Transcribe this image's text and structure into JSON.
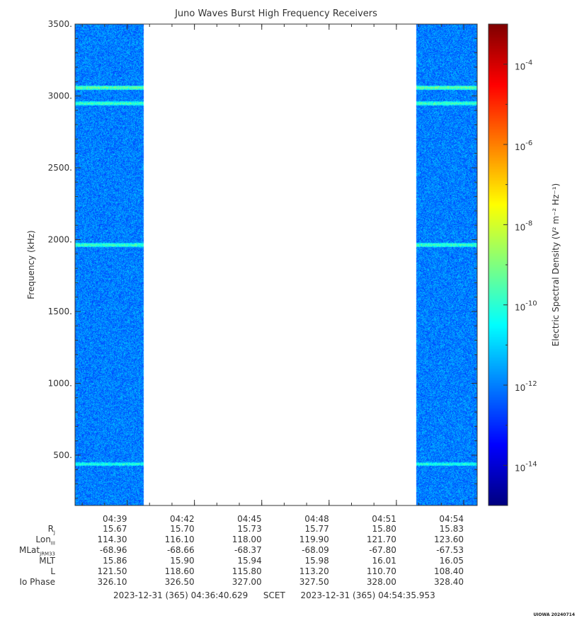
{
  "title": "Juno Waves Burst High Frequency Receivers",
  "colorbar_label": "Electric Spectral Density (V² m⁻² Hz⁻¹)",
  "colorbar_ticks": [
    {
      "base": "10",
      "exp": "-4",
      "value_log10": -4
    },
    {
      "base": "10",
      "exp": "-6",
      "value_log10": -6
    },
    {
      "base": "10",
      "exp": "-8",
      "value_log10": -8
    },
    {
      "base": "10",
      "exp": "-10",
      "value_log10": -10
    },
    {
      "base": "10",
      "exp": "-12",
      "value_log10": -12
    },
    {
      "base": "10",
      "exp": "-14",
      "value_log10": -14
    }
  ],
  "ephemeris": {
    "rows": [
      {
        "name": "R",
        "sub": "J",
        "values": [
          "15.67",
          "15.70",
          "15.73",
          "15.77",
          "15.80",
          "15.83"
        ]
      },
      {
        "name": "Lon",
        "sub": "III",
        "values": [
          "114.30",
          "116.10",
          "118.00",
          "119.90",
          "121.70",
          "123.60"
        ]
      },
      {
        "name": "MLat",
        "sub": "JRM33",
        "values": [
          "-68.96",
          "-68.66",
          "-68.37",
          "-68.09",
          "-67.80",
          "-67.53"
        ]
      },
      {
        "name": "MLT",
        "sub": "",
        "values": [
          "15.86",
          "15.90",
          "15.94",
          "15.98",
          "16.01",
          "16.05"
        ]
      },
      {
        "name": "L",
        "sub": "",
        "values": [
          "121.50",
          "118.60",
          "115.80",
          "113.20",
          "110.70",
          "108.40"
        ]
      },
      {
        "name": "Io Phase",
        "sub": "",
        "values": [
          "326.10",
          "326.50",
          "327.00",
          "327.50",
          "328.00",
          "328.40"
        ]
      }
    ]
  },
  "footer": {
    "start": "2023-12-31 (365) 04:36:40.629",
    "mid": "SCET",
    "end": "2023-12-31 (365) 04:54:35.953"
  },
  "credit": "UIOWA 20240714",
  "chart_data": {
    "type": "heatmap",
    "title": "Juno Waves Burst High Frequency Receivers",
    "ylabel": "Frequency (kHz)",
    "xlabel": "",
    "y_range_khz": [
      150,
      3500
    ],
    "x_range_minutes": [
      0,
      17.92
    ],
    "x_start_time": "04:36:40.629",
    "yticks": [
      {
        "label": "500.",
        "value": 500
      },
      {
        "label": "1000.",
        "value": 1000
      },
      {
        "label": "1500.",
        "value": 1500
      },
      {
        "label": "2000.",
        "value": 2000
      },
      {
        "label": "2500.",
        "value": 2500
      },
      {
        "label": "3000.",
        "value": 3000
      },
      {
        "label": "3500.",
        "value": 3500
      }
    ],
    "xticks": [
      {
        "label": "04:39",
        "minute": 2.32
      },
      {
        "label": "04:42",
        "minute": 5.32
      },
      {
        "label": "04:45",
        "minute": 8.32
      },
      {
        "label": "04:48",
        "minute": 11.32
      },
      {
        "label": "04:51",
        "minute": 14.32
      },
      {
        "label": "04:54",
        "minute": 17.32
      }
    ],
    "data_segments": [
      {
        "start_minute": 0.0,
        "end_minute": 3.05
      },
      {
        "start_minute": 15.2,
        "end_minute": 17.92
      }
    ],
    "background_log10_density": -12,
    "emission_lines": [
      {
        "freq_khz": 3060,
        "log10_density": -9.2
      },
      {
        "freq_khz": 2950,
        "log10_density": -9.6
      },
      {
        "freq_khz": 1965,
        "log10_density": -9.6
      },
      {
        "freq_khz": 440,
        "log10_density": -10
      }
    ],
    "colorbar": {
      "log10_min": -15,
      "log10_max": -3,
      "scale": "log"
    }
  }
}
